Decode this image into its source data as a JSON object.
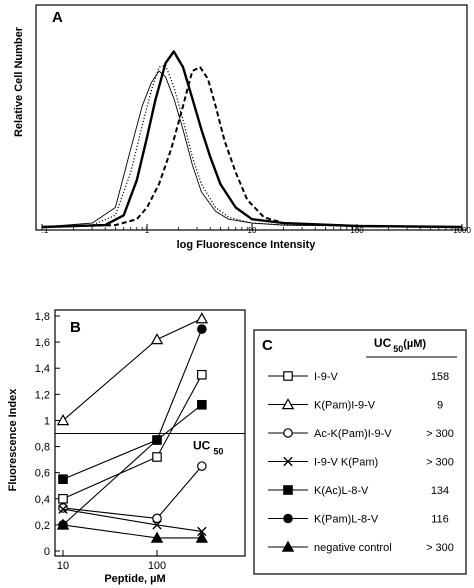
{
  "chart_data": [
    {
      "type": "line",
      "panel": "A",
      "ylabel": "Relative Cell Number",
      "xlabel": "log Fluorescence Intensity",
      "x_scale": "log",
      "xlim": [
        0.1,
        1000
      ],
      "x_tick_labels": [
        ".1",
        "1",
        "10",
        "100",
        "1000"
      ],
      "grid": false,
      "series": [
        {
          "style": "thin solid",
          "x": [
            0.1,
            0.3,
            0.5,
            0.7,
            0.9,
            1.1,
            1.3,
            1.5,
            1.8,
            2.2,
            2.7,
            3.3,
            4.5,
            6,
            10,
            20,
            100,
            1000
          ],
          "y": [
            0,
            2,
            10,
            40,
            62,
            74,
            80,
            77,
            66,
            50,
            32,
            18,
            8,
            4,
            2,
            1,
            0.5,
            0
          ]
        },
        {
          "style": "dotted",
          "x": [
            0.1,
            0.3,
            0.5,
            0.7,
            0.9,
            1.1,
            1.3,
            1.5,
            1.8,
            2.2,
            2.7,
            3.3,
            4.5,
            6,
            10,
            20,
            100,
            1000
          ],
          "y": [
            0,
            1,
            6,
            28,
            52,
            70,
            82,
            83,
            72,
            55,
            36,
            22,
            10,
            5,
            2,
            1,
            0.5,
            0
          ]
        },
        {
          "style": "thick solid",
          "x": [
            0.1,
            0.4,
            0.6,
            0.8,
            1.0,
            1.2,
            1.5,
            1.8,
            2.2,
            2.7,
            3.3,
            4,
            5,
            7,
            10,
            20,
            100,
            1000
          ],
          "y": [
            0,
            1,
            6,
            24,
            46,
            65,
            84,
            90,
            82,
            66,
            50,
            36,
            22,
            10,
            4,
            2,
            0.5,
            0
          ]
        },
        {
          "style": "dashed",
          "x": [
            0.1,
            0.5,
            0.8,
            1.0,
            1.3,
            1.7,
            2.2,
            2.7,
            3.2,
            3.8,
            4.5,
            5.5,
            7,
            9,
            13,
            20,
            100,
            1000
          ],
          "y": [
            0,
            1,
            4,
            10,
            22,
            40,
            62,
            80,
            82,
            76,
            62,
            44,
            28,
            14,
            5,
            2,
            0.5,
            0
          ]
        }
      ]
    },
    {
      "type": "line",
      "panel": "B",
      "ylabel": "Fluorescence Index",
      "xlabel": "Peptide, µM",
      "x_scale": "log",
      "x_ticks": [
        10,
        100
      ],
      "x_tick_labels": [
        "10",
        "100"
      ],
      "ylim": [
        0,
        1.8
      ],
      "y_ticks": [
        0,
        0.2,
        0.4,
        0.6,
        0.8,
        1,
        1.2,
        1.4,
        1.6,
        1.8
      ],
      "y_tick_labels": [
        "0",
        "0,2",
        "0,4",
        "0,6",
        "0,8",
        "1",
        "1,2",
        "1,4",
        "1,6",
        "1,8"
      ],
      "threshold_value": 0.9,
      "threshold_label": "UC",
      "threshold_subscript": "50",
      "grid": false,
      "series": [
        {
          "name": "I-9-V",
          "marker": "square-open",
          "x": [
            10,
            100,
            300
          ],
          "y": [
            0.4,
            0.72,
            1.35
          ]
        },
        {
          "name": "K(Pam)I-9-V",
          "marker": "triangle-open",
          "x": [
            10,
            100,
            300
          ],
          "y": [
            1.0,
            1.62,
            1.78
          ]
        },
        {
          "name": "Ac-K(Pam)I-9-V",
          "marker": "circle-open",
          "x": [
            10,
            100,
            300
          ],
          "y": [
            0.33,
            0.25,
            0.65
          ]
        },
        {
          "name": "I-9-V K(Pam)",
          "marker": "cross",
          "x": [
            10,
            100,
            300
          ],
          "y": [
            0.32,
            0.2,
            0.15
          ]
        },
        {
          "name": "K(Ac)L-8-V",
          "marker": "square-filled",
          "x": [
            10,
            100,
            300
          ],
          "y": [
            0.55,
            0.85,
            1.12
          ]
        },
        {
          "name": "K(Pam)L-8-V",
          "marker": "circle-filled",
          "x": [
            10,
            100,
            300
          ],
          "y": [
            0.2,
            0.85,
            1.7
          ]
        },
        {
          "name": "negative control",
          "marker": "triangle-filled",
          "x": [
            10,
            100,
            300
          ],
          "y": [
            0.2,
            0.1,
            0.1
          ]
        }
      ]
    },
    {
      "type": "table",
      "panel": "C",
      "header_main": "UC",
      "header_sub": "50",
      "header_unit": "(µM)",
      "rows": [
        {
          "label": "I-9-V",
          "marker": "square-open",
          "value": "158"
        },
        {
          "label": "K(Pam)I-9-V",
          "marker": "triangle-open",
          "value": "9"
        },
        {
          "label": "Ac-K(Pam)I-9-V",
          "marker": "circle-open",
          "value": "> 300"
        },
        {
          "label": "I-9-V K(Pam)",
          "marker": "cross",
          "value": "> 300"
        },
        {
          "label": "K(Ac)L-8-V",
          "marker": "square-filled",
          "value": "134"
        },
        {
          "label": "K(Pam)L-8-V",
          "marker": "circle-filled",
          "value": "116"
        },
        {
          "label": "negative control",
          "marker": "triangle-filled",
          "value": "> 300"
        }
      ]
    }
  ]
}
